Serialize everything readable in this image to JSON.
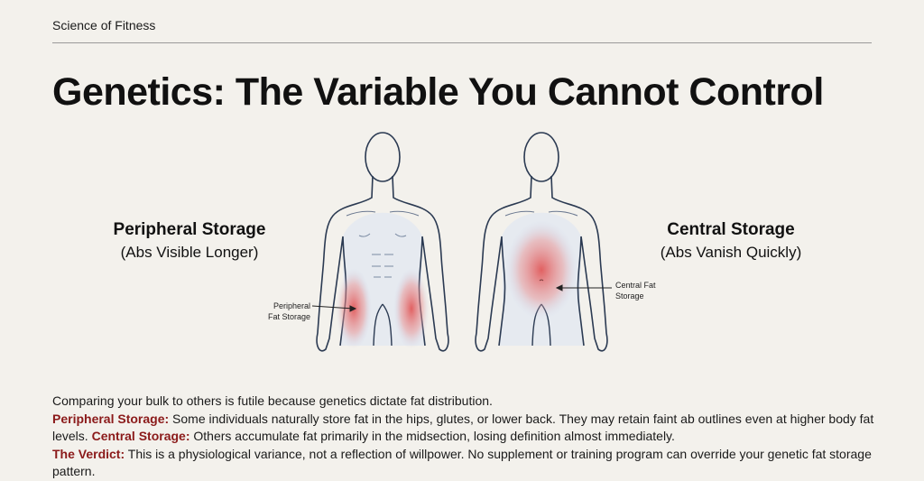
{
  "header": {
    "kicker": "Science of Fitness",
    "title": "Genetics: The Variable You Cannot Control"
  },
  "left": {
    "heading": "Peripheral Storage",
    "subheading": "(Abs Visible Longer)",
    "callout_line1": "Peripheral",
    "callout_line2": "Fat Storage"
  },
  "right": {
    "heading": "Central Storage",
    "subheading": "(Abs Vanish Quickly)",
    "callout_line1": "Central Fat",
    "callout_line2": "Storage"
  },
  "body": {
    "intro": "Comparing your bulk to others is futile because genetics dictate fat distribution.",
    "peripheral_label": "Peripheral Storage:",
    "peripheral_text": " Some individuals naturally store fat in the hips, glutes, or lower back. They may retain faint ab outlines even at higher body fat levels. ",
    "central_label": "Central Storage:",
    "central_text": " Others accumulate fat primarily in the midsection, losing definition almost immediately.",
    "verdict_label": "The Verdict:",
    "verdict_text": " This is a physiological variance, not a reflection of willpower. No supplement or training program can override your genetic fat storage pattern."
  },
  "colors": {
    "accent": "#8b1a1a",
    "fat_red": "#e05050",
    "outline": "#2b3a52",
    "background": "#f3f1ec"
  }
}
